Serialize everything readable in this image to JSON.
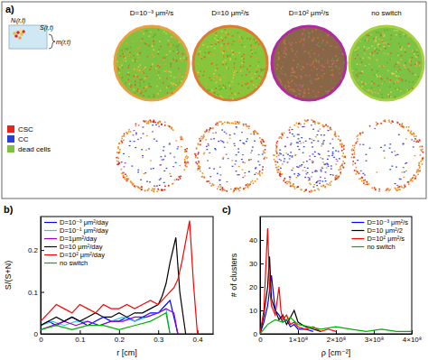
{
  "panel_a": {
    "label": "a)",
    "inset_labels": [
      "Nᵢ(r,t)",
      "S(r,t)",
      "m(r,t)"
    ],
    "legend": [
      {
        "name": "CSC",
        "color": "#e3261c"
      },
      {
        "name": "CC",
        "color": "#2b3fd6"
      },
      {
        "name": "dead cells",
        "color": "#7fc241"
      }
    ],
    "titles": [
      "D=10⁻³ μm²/s",
      "D=10 μm²/s",
      "D=10² μm²/s",
      "no switch"
    ]
  },
  "chart_data": [
    {
      "type": "line",
      "annotations": [
        "b)"
      ],
      "x_label": "r [cm]",
      "y_label": "S/(S+N)",
      "xlim": [
        0,
        0.44
      ],
      "xticks": [
        0,
        0.1,
        0.2,
        0.3,
        0.4
      ],
      "ylim": [
        0,
        0.28
      ],
      "yticks": [
        0,
        0.1,
        0.2
      ],
      "legend": "upper left",
      "series": [
        {
          "name": "D=10⁻³ μm²/day",
          "color": "#0000ff",
          "x": [
            0,
            0.02,
            0.04,
            0.06,
            0.08,
            0.1,
            0.12,
            0.14,
            0.16,
            0.18,
            0.2,
            0.22,
            0.24,
            0.26,
            0.28,
            0.3,
            0.32,
            0.33,
            0.34,
            0.35
          ],
          "values": [
            0.02,
            0.03,
            0.02,
            0.03,
            0.04,
            0.03,
            0.02,
            0.03,
            0.04,
            0.03,
            0.03,
            0.04,
            0.03,
            0.04,
            0.05,
            0.05,
            0.07,
            0.08,
            0.04,
            0
          ]
        },
        {
          "name": "D=10⁻¹ μm²/day",
          "color": "#3ec8e0",
          "x": [
            0,
            0.03,
            0.06,
            0.09,
            0.12,
            0.15,
            0.18,
            0.21,
            0.24,
            0.27,
            0.3,
            0.32,
            0.33
          ],
          "values": [
            0.02,
            0.03,
            0.02,
            0.03,
            0.03,
            0.02,
            0.03,
            0.04,
            0.03,
            0.04,
            0.05,
            0.06,
            0
          ]
        },
        {
          "name": "D=1μm²/day",
          "color": "#9400d3",
          "x": [
            0,
            0.03,
            0.06,
            0.09,
            0.12,
            0.15,
            0.18,
            0.21,
            0.24,
            0.27,
            0.3,
            0.32,
            0.34,
            0.35
          ],
          "values": [
            0.01,
            0.02,
            0.03,
            0.02,
            0.03,
            0.02,
            0.03,
            0.03,
            0.04,
            0.04,
            0.05,
            0.06,
            0.05,
            0
          ]
        },
        {
          "name": "D=10 μm²/day",
          "color": "#000000",
          "x": [
            0,
            0.02,
            0.04,
            0.06,
            0.08,
            0.1,
            0.12,
            0.14,
            0.16,
            0.18,
            0.2,
            0.22,
            0.24,
            0.26,
            0.28,
            0.3,
            0.31,
            0.32,
            0.33,
            0.34,
            0.345,
            0.355,
            0.37
          ],
          "values": [
            0.02,
            0.03,
            0.04,
            0.03,
            0.04,
            0.03,
            0.04,
            0.05,
            0.04,
            0.04,
            0.05,
            0.04,
            0.05,
            0.05,
            0.06,
            0.07,
            0.09,
            0.12,
            0.17,
            0.21,
            0.23,
            0.1,
            0
          ]
        },
        {
          "name": "D=10² μm²/day",
          "color": "#ff0000",
          "x": [
            0,
            0.02,
            0.04,
            0.06,
            0.08,
            0.1,
            0.12,
            0.14,
            0.16,
            0.18,
            0.2,
            0.22,
            0.24,
            0.26,
            0.28,
            0.3,
            0.32,
            0.34,
            0.35,
            0.36,
            0.37,
            0.38,
            0.39,
            0.4
          ],
          "values": [
            0.03,
            0.05,
            0.07,
            0.06,
            0.05,
            0.07,
            0.06,
            0.05,
            0.07,
            0.06,
            0.06,
            0.07,
            0.06,
            0.07,
            0.08,
            0.07,
            0.09,
            0.11,
            0.13,
            0.17,
            0.22,
            0.27,
            0.12,
            0
          ]
        },
        {
          "name": "no switch",
          "color": "#00b000",
          "x": [
            0,
            0.04,
            0.08,
            0.12,
            0.16,
            0.2,
            0.24,
            0.28,
            0.3,
            0.32,
            0.33
          ],
          "values": [
            0.01,
            0.02,
            0.01,
            0.02,
            0.02,
            0.01,
            0.02,
            0.03,
            0.04,
            0.05,
            0
          ]
        }
      ]
    },
    {
      "type": "line",
      "annotations": [
        "c)"
      ],
      "x_label": "ρ [cm⁻²]",
      "y_label": "# of clusters",
      "xlim": [
        0,
        400000000
      ],
      "xticks": [
        0,
        {
          "value": 100000000,
          "label": "1×10⁸"
        },
        {
          "value": 200000000,
          "label": "2×10⁸"
        },
        {
          "value": 300000000,
          "label": "3×10⁸"
        },
        {
          "value": 400000000,
          "label": "4×10⁸"
        }
      ],
      "ylim": [
        0,
        50
      ],
      "yticks": [
        0,
        10,
        20,
        30,
        40
      ],
      "legend": "upper right",
      "series": [
        {
          "name": "D=10⁻³ μm²/s",
          "color": "#0000ff",
          "x": [
            0,
            10000000,
            20000000,
            30000000,
            40000000,
            50000000,
            60000000,
            70000000,
            80000000,
            90000000,
            100000000,
            120000000,
            140000000
          ],
          "values": [
            0,
            5,
            12,
            25,
            10,
            8,
            5,
            6,
            3,
            4,
            2,
            2,
            1
          ]
        },
        {
          "name": "D=10 μm²/2",
          "color": "#000000",
          "x": [
            0,
            10000000,
            20000000,
            25000000,
            30000000,
            40000000,
            50000000,
            60000000,
            70000000,
            80000000,
            90000000,
            100000000,
            120000000,
            140000000,
            160000000
          ],
          "values": [
            0,
            8,
            20,
            33,
            15,
            10,
            6,
            8,
            4,
            7,
            10,
            5,
            3,
            2,
            1
          ]
        },
        {
          "name": "D=10² μm²/s",
          "color": "#ff0000",
          "x": [
            0,
            10000000,
            20000000,
            25000000,
            30000000,
            40000000,
            50000000,
            55000000,
            60000000,
            70000000,
            80000000,
            90000000,
            100000000,
            120000000,
            140000000,
            160000000,
            180000000,
            200000000
          ],
          "values": [
            0,
            10,
            45,
            20,
            12,
            8,
            20,
            10,
            6,
            8,
            4,
            5,
            3,
            2,
            3,
            1,
            2,
            1
          ]
        },
        {
          "name": "no switch",
          "color": "#00b000",
          "x": [
            0,
            20000000,
            40000000,
            60000000,
            80000000,
            100000000,
            130000000,
            160000000,
            200000000,
            240000000,
            280000000,
            320000000,
            360000000,
            400000000
          ],
          "values": [
            0,
            4,
            6,
            5,
            7,
            4,
            3,
            2,
            3,
            2,
            1,
            2,
            1,
            1
          ]
        }
      ]
    }
  ]
}
